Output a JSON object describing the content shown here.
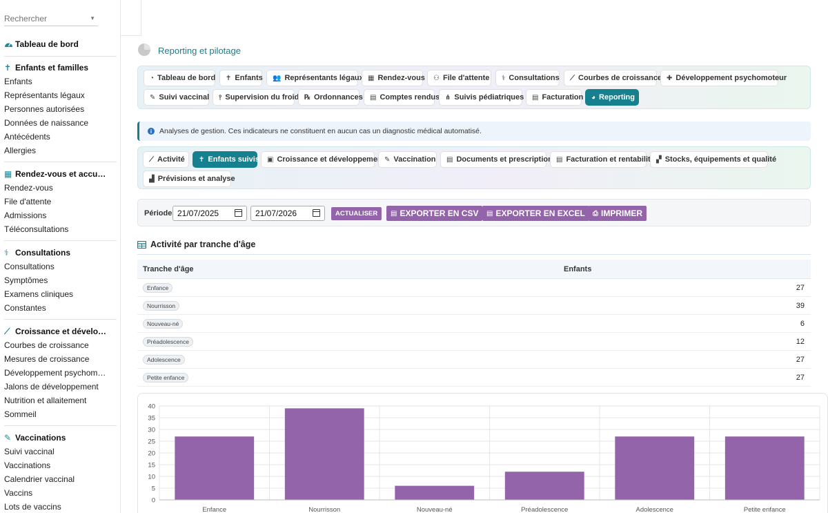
{
  "search": {
    "placeholder": "Rechercher"
  },
  "sidebar": {
    "dashboard": "Tableau de bord",
    "sections": [
      {
        "title": "Enfants et familles",
        "icon": "child-icon",
        "items": [
          "Enfants",
          "Représentants légaux",
          "Personnes autorisées",
          "Données de naissance",
          "Antécédents",
          "Allergies"
        ]
      },
      {
        "title": "Rendez-vous et accu…",
        "icon": "calendar-icon",
        "items": [
          "Rendez-vous",
          "File d'attente",
          "Admissions",
          "Téléconsultations"
        ]
      },
      {
        "title": "Consultations",
        "icon": "stethoscope-icon",
        "items": [
          "Consultations",
          "Symptômes",
          "Examens cliniques",
          "Constantes"
        ]
      },
      {
        "title": "Croissance et dévelo…",
        "icon": "chart-line-icon",
        "items": [
          "Courbes de croissance",
          "Mesures de croissance",
          "Développement psychom…",
          "Jalons de développement",
          "Nutrition et allaitement",
          "Sommeil"
        ]
      },
      {
        "title": "Vaccinations",
        "icon": "syringe-icon",
        "items": [
          "Suivi vaccinal",
          "Vaccinations",
          "Calendrier vaccinal",
          "Vaccins",
          "Lots de vaccins"
        ]
      }
    ]
  },
  "page": {
    "title": "Reporting et pilotage"
  },
  "main_tabs": [
    {
      "label": "Tableau de bord",
      "icon": "gauge-icon",
      "active": false
    },
    {
      "label": "Enfants",
      "icon": "child-icon",
      "active": false
    },
    {
      "label": "Représentants légaux",
      "icon": "users-icon",
      "active": false
    },
    {
      "label": "Rendez-vous",
      "icon": "calendar-icon",
      "active": false
    },
    {
      "label": "File d'attente",
      "icon": "people-icon",
      "active": false
    },
    {
      "label": "Consultations",
      "icon": "stethoscope-icon",
      "active": false
    },
    {
      "label": "Courbes de croissance",
      "icon": "chart-line-icon",
      "active": false
    },
    {
      "label": "Développement psychomoteur",
      "icon": "puzzle-icon",
      "active": false
    },
    {
      "label": "Suivi vaccinal",
      "icon": "syringe-icon",
      "active": false
    },
    {
      "label": "Supervision du froid",
      "icon": "thermometer-icon",
      "active": false
    },
    {
      "label": "Ordonnances",
      "icon": "prescription-icon",
      "active": false
    },
    {
      "label": "Comptes rendus",
      "icon": "file-icon",
      "active": false
    },
    {
      "label": "Suivis pédiatriques",
      "icon": "network-icon",
      "active": false
    },
    {
      "label": "Facturation",
      "icon": "invoice-icon",
      "active": false
    },
    {
      "label": "Reporting",
      "icon": "pie-chart-icon",
      "active": true
    }
  ],
  "notice": {
    "text": "Analyses de gestion. Ces indicateurs ne constituent en aucun cas un diagnostic médical automatisé."
  },
  "sub_tabs": [
    {
      "label": "Activité",
      "icon": "chart-line-icon",
      "active": false
    },
    {
      "label": "Enfants suivis",
      "icon": "child-icon",
      "active": true
    },
    {
      "label": "Croissance et développement",
      "icon": "briefcase-icon",
      "active": false
    },
    {
      "label": "Vaccination",
      "icon": "syringe-icon",
      "active": false
    },
    {
      "label": "Documents et prescriptions",
      "icon": "file-icon",
      "active": false
    },
    {
      "label": "Facturation et rentabilité",
      "icon": "invoice-icon",
      "active": false
    },
    {
      "label": "Stocks, équipements et qualité",
      "icon": "boxes-icon",
      "active": false
    },
    {
      "label": "Prévisions et analyse",
      "icon": "chart-area-icon",
      "active": false
    }
  ],
  "period": {
    "label": "Période",
    "from": "21/07/2025",
    "to": "21/07/2026",
    "refresh_label": "ACTUALISER",
    "export_csv_label": "EXPORTER EN CSV",
    "export_excel_label": "EXPORTER EN EXCEL",
    "print_label": "IMPRIMER"
  },
  "section": {
    "title": "Activité par tranche d'âge"
  },
  "table": {
    "columns": [
      "Tranche d'âge",
      "Enfants"
    ],
    "rows": [
      {
        "label": "Enfance",
        "value": "27"
      },
      {
        "label": "Nourrisson",
        "value": "39"
      },
      {
        "label": "Nouveau-né",
        "value": "6"
      },
      {
        "label": "Préadolescence",
        "value": "12"
      },
      {
        "label": "Adolescence",
        "value": "27"
      },
      {
        "label": "Petite enfance",
        "value": "27"
      }
    ]
  },
  "chart_data": {
    "type": "bar",
    "categories": [
      "Enfance",
      "Nourrisson",
      "Nouveau-né",
      "Préadolescence",
      "Adolescence",
      "Petite enfance"
    ],
    "values": [
      27,
      39,
      6,
      12,
      27,
      27
    ],
    "title": "",
    "xlabel": "",
    "ylabel": "",
    "ylim": [
      0,
      40
    ],
    "yticks": [
      0,
      5,
      10,
      15,
      20,
      25,
      30,
      35,
      40
    ],
    "grid": true,
    "bar_color": "#9364aa"
  },
  "colors": {
    "accent": "#17808f",
    "button": "#9364aa"
  }
}
